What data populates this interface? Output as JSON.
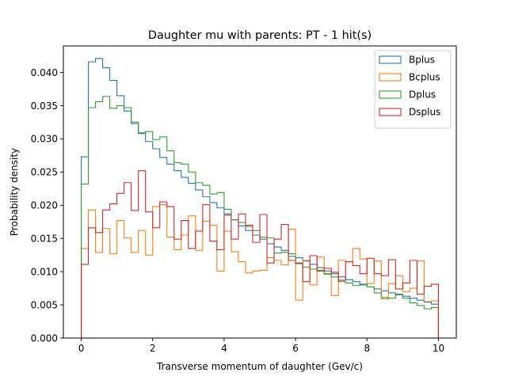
{
  "chart_data": {
    "type": "step-histogram",
    "title": "Daughter mu with parents: PT - 1 hit(s)",
    "xlabel": "Transverse momentum of daughter (Gev/c)",
    "ylabel": "Probability density",
    "xlim": [
      -0.5,
      10.5
    ],
    "ylim": [
      0,
      0.044
    ],
    "xticks": [
      0,
      2,
      4,
      6,
      8,
      10
    ],
    "xtick_labels": [
      "0",
      "2",
      "4",
      "6",
      "8",
      "10"
    ],
    "yticks": [
      0.0,
      0.005,
      0.01,
      0.015,
      0.02,
      0.025,
      0.03,
      0.035,
      0.04
    ],
    "ytick_labels": [
      "0.000",
      "0.005",
      "0.010",
      "0.015",
      "0.020",
      "0.025",
      "0.030",
      "0.035",
      "0.040"
    ],
    "bin_start": 0,
    "bin_width": 0.2,
    "grid": false,
    "legend_position": "top-right",
    "series": [
      {
        "name": "Bplus",
        "color": "#1f77b4",
        "values": [
          0.0273,
          0.0416,
          0.0421,
          0.0407,
          0.0388,
          0.0365,
          0.0342,
          0.0323,
          0.0309,
          0.0296,
          0.0285,
          0.0272,
          0.0262,
          0.0252,
          0.0242,
          0.0233,
          0.0223,
          0.0213,
          0.0204,
          0.0196,
          0.0187,
          0.0178,
          0.0169,
          0.0162,
          0.0155,
          0.0149,
          0.0142,
          0.0137,
          0.0132,
          0.0127,
          0.0121,
          0.0116,
          0.0111,
          0.0106,
          0.0101,
          0.0097,
          0.0092,
          0.0088,
          0.0085,
          0.0081,
          0.0077,
          0.0074,
          0.0071,
          0.0068,
          0.0066,
          0.0063,
          0.006,
          0.0057,
          0.0054,
          0.0051
        ]
      },
      {
        "name": "Bcplus",
        "color": "#ff7f0e",
        "values": [
          0.0135,
          0.0193,
          0.0129,
          0.0165,
          0.0127,
          0.0177,
          0.0151,
          0.0129,
          0.0162,
          0.0125,
          0.0198,
          0.0201,
          0.0152,
          0.0133,
          0.0155,
          0.0184,
          0.0132,
          0.0176,
          0.017,
          0.0101,
          0.0161,
          0.013,
          0.0115,
          0.0098,
          0.0101,
          0.0102,
          0.0121,
          0.0117,
          0.011,
          0.0164,
          0.0057,
          0.0117,
          0.008,
          0.0122,
          0.0096,
          0.0064,
          0.0117,
          0.0115,
          0.0135,
          0.0119,
          0.0082,
          0.0116,
          0.0059,
          0.0082,
          0.0094,
          0.007,
          0.0075,
          0.0116,
          0.0055,
          0.0056
        ]
      },
      {
        "name": "Dplus",
        "color": "#2ca02c",
        "values": [
          0.0232,
          0.0347,
          0.0356,
          0.0364,
          0.0346,
          0.035,
          0.0347,
          0.0325,
          0.0308,
          0.0311,
          0.0299,
          0.0303,
          0.0282,
          0.0264,
          0.0262,
          0.025,
          0.0234,
          0.023,
          0.0217,
          0.0219,
          0.0194,
          0.0178,
          0.0174,
          0.0168,
          0.0162,
          0.0152,
          0.0151,
          0.0128,
          0.0129,
          0.0123,
          0.0112,
          0.0107,
          0.0104,
          0.0102,
          0.0097,
          0.0092,
          0.0085,
          0.0083,
          0.0079,
          0.008,
          0.0077,
          0.0068,
          0.0061,
          0.006,
          0.0065,
          0.006,
          0.0053,
          0.0049,
          0.0044,
          0.0046
        ]
      },
      {
        "name": "Dsplus",
        "color": "#d62728",
        "values": [
          0.0111,
          0.0166,
          0.0159,
          0.0193,
          0.0202,
          0.0218,
          0.0234,
          0.0192,
          0.0252,
          0.019,
          0.0166,
          0.0205,
          0.0198,
          0.0149,
          0.0177,
          0.0135,
          0.0161,
          0.0201,
          0.0146,
          0.0133,
          0.0185,
          0.0149,
          0.0187,
          0.017,
          0.0144,
          0.0186,
          0.0113,
          0.0149,
          0.0171,
          0.0117,
          0.0113,
          0.0085,
          0.0124,
          0.0101,
          0.0105,
          0.0099,
          0.0087,
          0.0115,
          0.0109,
          0.0097,
          0.012,
          0.0097,
          0.0094,
          0.0118,
          0.0074,
          0.0083,
          0.0117,
          0.0066,
          0.0078,
          0.0081
        ]
      }
    ]
  }
}
